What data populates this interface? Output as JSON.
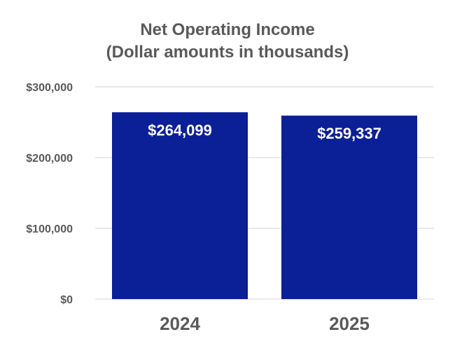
{
  "chart_data": {
    "type": "bar",
    "title": [
      "Net Operating Income",
      "(Dollar amounts in thousands)"
    ],
    "categories": [
      "2024",
      "2025"
    ],
    "values": [
      264099,
      259337
    ],
    "data_labels": [
      "$264,099",
      "$259,337"
    ],
    "ylim": [
      0,
      300000
    ],
    "yticks": [
      0,
      100000,
      200000,
      300000
    ],
    "ytick_labels": [
      "$0",
      "$100,000",
      "$200,000",
      "$300,000"
    ],
    "grid": true,
    "bar_color": "#0b2096"
  }
}
